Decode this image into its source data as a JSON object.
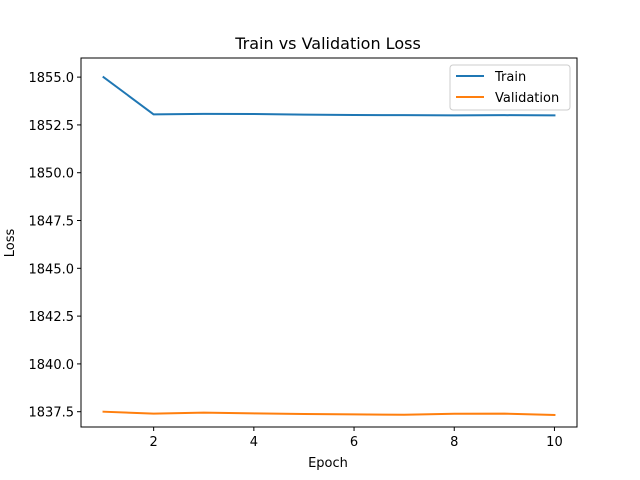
{
  "chart_data": {
    "type": "line",
    "title": "Train vs Validation Loss",
    "xlabel": "Epoch",
    "ylabel": "Loss",
    "x": [
      1,
      2,
      3,
      4,
      5,
      6,
      7,
      8,
      9,
      10
    ],
    "xticks": [
      2,
      4,
      6,
      8,
      10
    ],
    "yticks": [
      1837.5,
      1840.0,
      1842.5,
      1845.0,
      1847.5,
      1850.0,
      1852.5,
      1855.0
    ],
    "xlim": [
      0.55,
      10.45
    ],
    "ylim": [
      1836.7,
      1856.0
    ],
    "grid": false,
    "legend_position": "top-right",
    "series": [
      {
        "name": "Train",
        "color": "#1f77b4",
        "values": [
          1855.0,
          1853.05,
          1853.08,
          1853.07,
          1853.04,
          1853.02,
          1853.01,
          1853.0,
          1853.01,
          1853.0
        ]
      },
      {
        "name": "Validation",
        "color": "#ff7f0e",
        "values": [
          1837.5,
          1837.4,
          1837.45,
          1837.41,
          1837.38,
          1837.36,
          1837.34,
          1837.39,
          1837.4,
          1837.33
        ]
      }
    ]
  }
}
